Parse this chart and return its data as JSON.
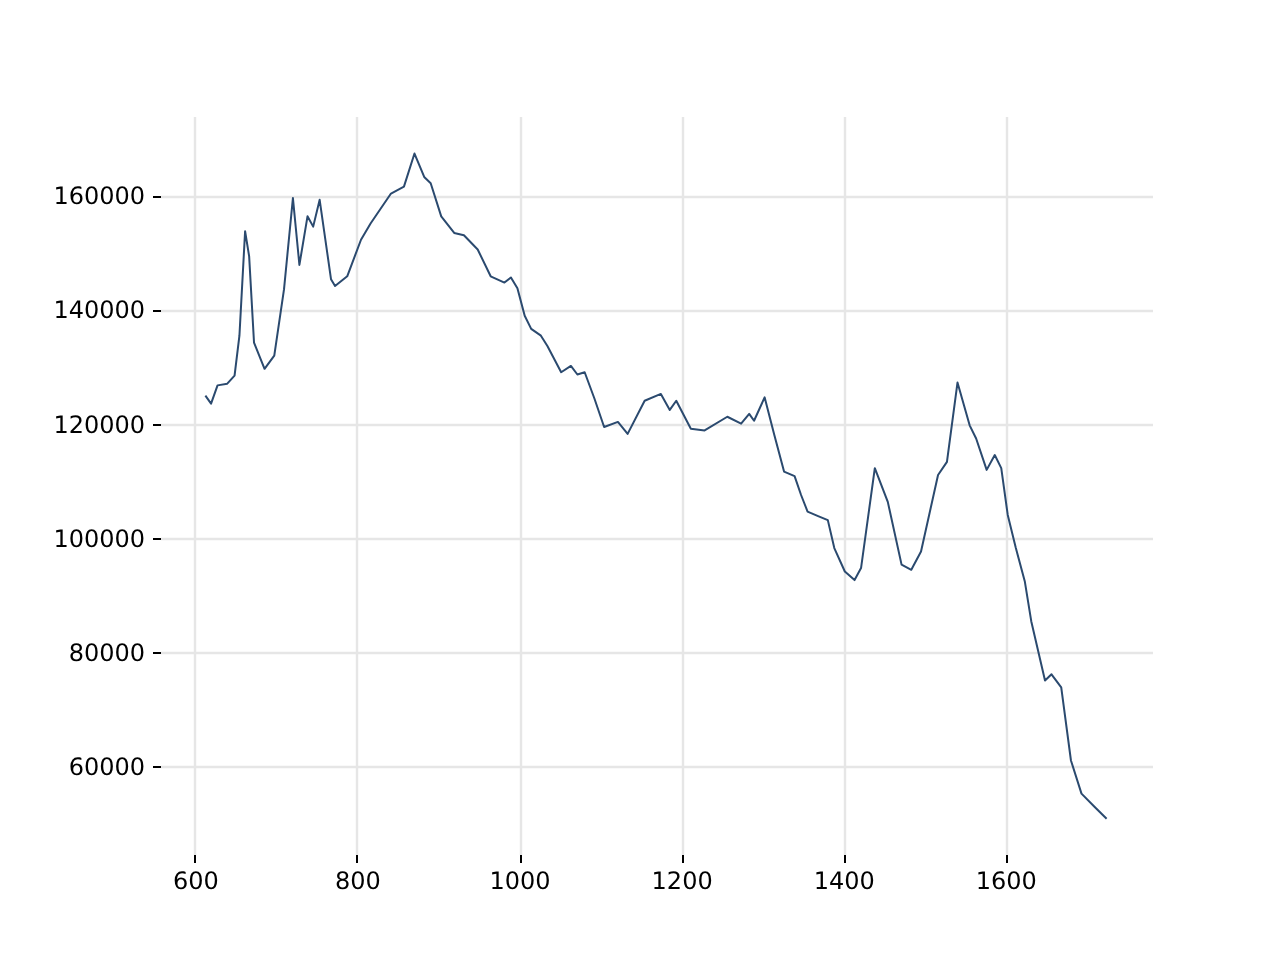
{
  "chart_data": {
    "type": "line",
    "xlim": [
      557,
      1781
    ],
    "ylim": [
      44625,
      173875
    ],
    "xticks": [
      600,
      800,
      1000,
      1200,
      1400,
      1600
    ],
    "yticks": [
      60000,
      80000,
      100000,
      120000,
      140000,
      160000
    ],
    "grid": true,
    "marker": "none",
    "line_style": "solid",
    "series": [
      {
        "color": "#2b4a6f",
        "x": [
          613,
          620,
          628,
          640,
          649,
          655,
          662,
          667,
          673,
          686,
          698,
          710,
          721,
          729,
          739,
          746,
          754,
          768,
          773,
          788,
          805,
          817,
          842,
          858,
          871,
          883,
          891,
          904,
          920,
          932,
          949,
          965,
          982,
          990,
          998,
          1007,
          1015,
          1027,
          1035,
          1052,
          1064,
          1072,
          1081,
          1093,
          1105,
          1122,
          1134,
          1155,
          1175,
          1186,
          1194,
          1212,
          1229,
          1257,
          1274,
          1284,
          1290,
          1303,
          1315,
          1327,
          1340,
          1348,
          1356,
          1369,
          1381,
          1389,
          1402,
          1414,
          1422,
          1439,
          1455,
          1472,
          1484,
          1496,
          1517,
          1528,
          1541,
          1556,
          1564,
          1577,
          1587,
          1595,
          1603,
          1613,
          1624,
          1632,
          1649,
          1657,
          1669,
          1681,
          1694,
          1710,
          1725
        ],
        "values": [
          124900,
          123500,
          126700,
          127000,
          128400,
          135400,
          153700,
          149300,
          134200,
          129600,
          131900,
          143500,
          159500,
          147800,
          156300,
          154500,
          159200,
          145300,
          144100,
          145800,
          152200,
          155100,
          160300,
          161500,
          167300,
          163200,
          162100,
          156300,
          153400,
          153000,
          150500,
          145800,
          144700,
          145600,
          143700,
          138900,
          136600,
          135400,
          133600,
          129000,
          130100,
          128600,
          129000,
          124400,
          119400,
          120300,
          118200,
          124000,
          125200,
          122400,
          124000,
          119100,
          118800,
          121200,
          120000,
          121700,
          120500,
          124600,
          118000,
          111600,
          110800,
          107500,
          104600,
          103800,
          103100,
          98200,
          94100,
          92600,
          94700,
          112200,
          106300,
          95300,
          94400,
          97600,
          111000,
          113300,
          127200,
          119700,
          117400,
          111900,
          114500,
          112200,
          104000,
          98200,
          92400,
          85400,
          75000,
          76100,
          73800,
          61000,
          55200,
          52900,
          50800
        ]
      }
    ]
  }
}
